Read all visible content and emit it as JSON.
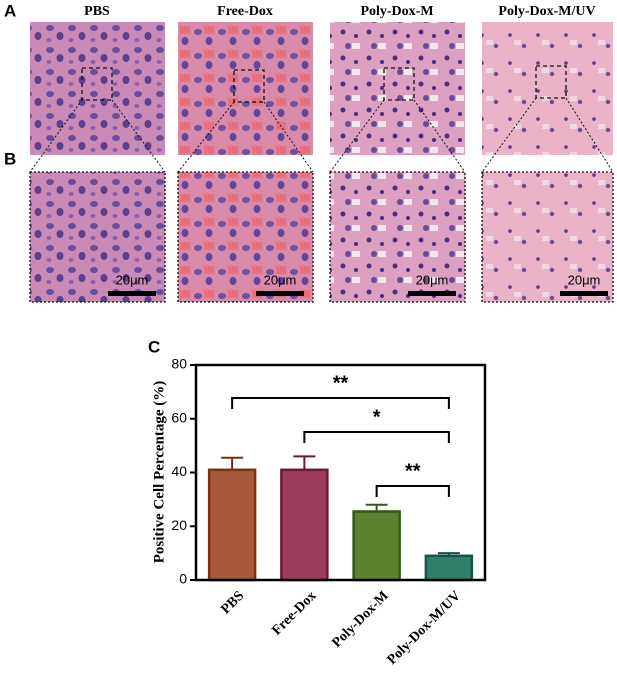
{
  "panel_labels": [
    "A",
    "B",
    "C"
  ],
  "image_titles": [
    "PBS",
    "Free-Dox",
    "Poly-Dox-M",
    "Poly-Dox-M/UV"
  ],
  "scale_bar_labels": [
    "20μm",
    "20μm",
    "20μm",
    "20μm"
  ],
  "chart_data": {
    "type": "bar",
    "ylabel": "Positive Cell Percentage (%)",
    "categories": [
      "PBS",
      "Free-Dox",
      "Poly-Dox-M",
      "Poly-Dox-M/UV"
    ],
    "values": [
      41,
      41,
      25.5,
      9
    ],
    "errors": [
      4.5,
      5,
      2.5,
      1
    ],
    "colors": [
      "#a9583c",
      "#9c3d5c",
      "#5e812d",
      "#2f806b"
    ],
    "edge_colors": [
      "#7a2e12",
      "#6b1836",
      "#36581a",
      "#155546"
    ],
    "ylim": [
      0,
      80
    ],
    "yticks": [
      0,
      20,
      40,
      60,
      80
    ],
    "annotations": [
      "**",
      "*",
      "**"
    ]
  }
}
